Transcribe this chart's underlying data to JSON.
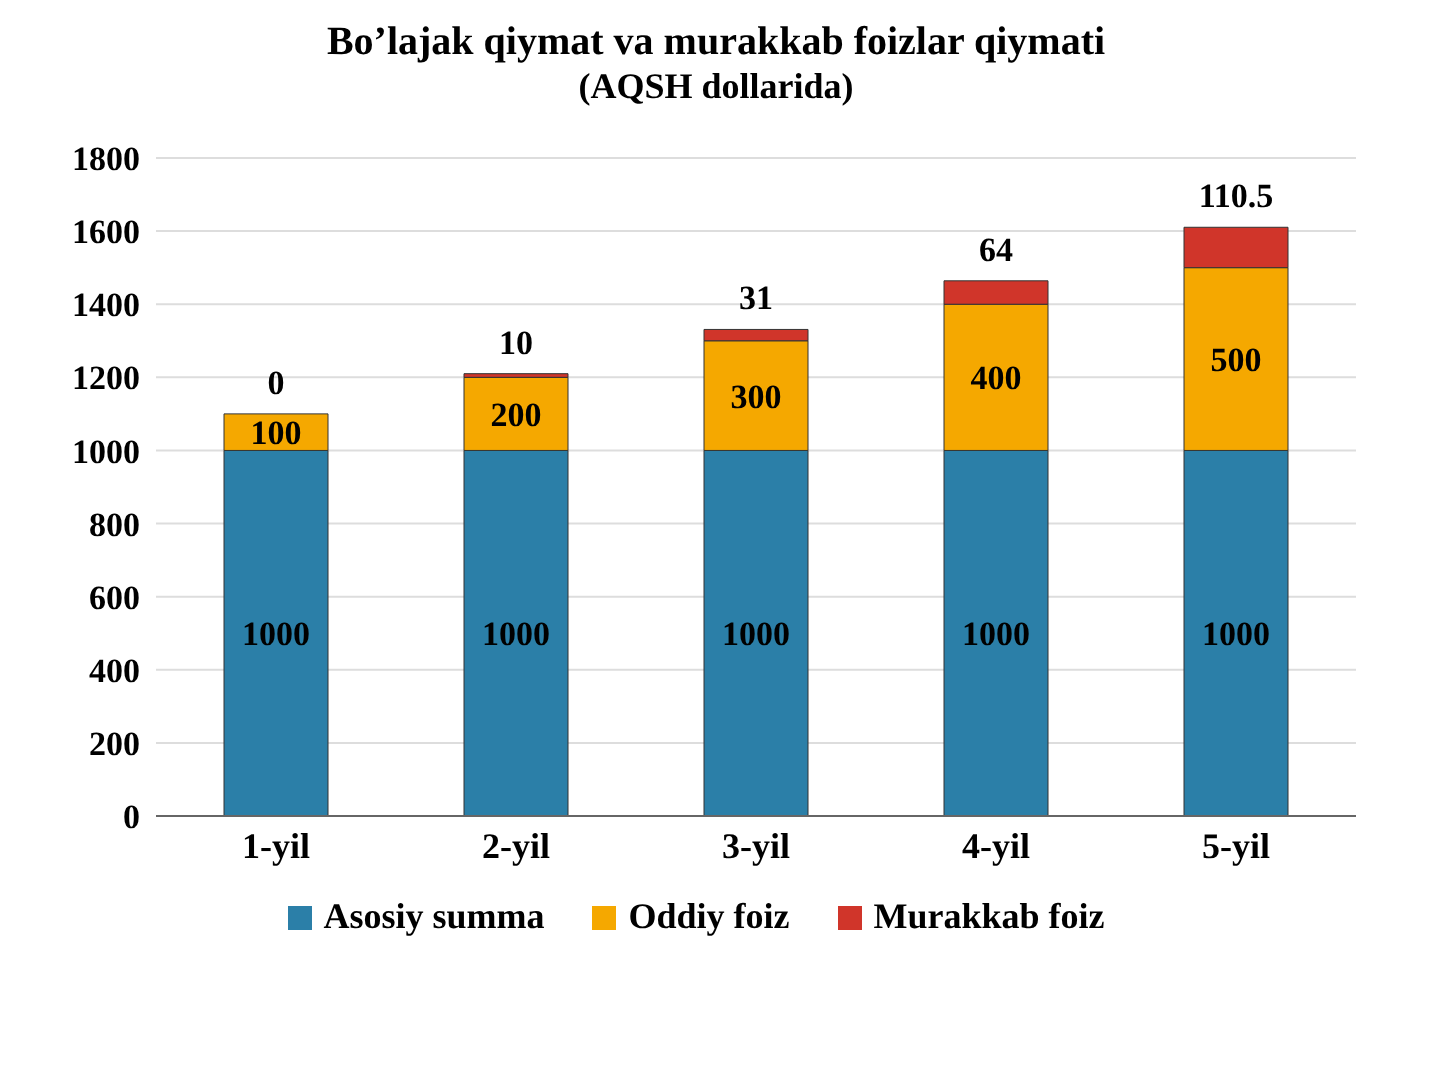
{
  "chart_data": {
    "type": "bar",
    "title": "Bo’lajak qiymat va murakkab foizlar qiymati",
    "subtitle": "(AQSH dollarida)",
    "categories": [
      "1-yil",
      "2-yil",
      "3-yil",
      "4-yil",
      "5-yil"
    ],
    "series": [
      {
        "name": "Asosiy summa",
        "color": "#2b7fa8",
        "values": [
          1000,
          1000,
          1000,
          1000,
          1000
        ]
      },
      {
        "name": "Oddiy foiz",
        "color": "#f5a800",
        "values": [
          100,
          200,
          300,
          400,
          500
        ]
      },
      {
        "name": "Murakkab foiz",
        "color": "#d0352a",
        "values": [
          0,
          10,
          31,
          64,
          110.5
        ]
      }
    ],
    "stacked": true,
    "ylim": [
      0,
      1800
    ],
    "yticks": [
      0,
      200,
      400,
      600,
      800,
      1000,
      1200,
      1400,
      1600,
      1800
    ],
    "grid": "y",
    "legend": "bottom",
    "data_labels": true
  }
}
